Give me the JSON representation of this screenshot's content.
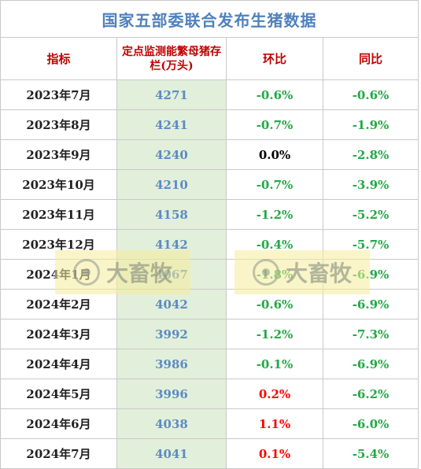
{
  "title": "国家五部委联合发布生猪数据",
  "headers": {
    "indicator": "指标",
    "stock": "定点监测能繁母猪存栏(万头)",
    "mom": "环比",
    "yoy": "同比"
  },
  "rows": [
    {
      "period": "2023年7月",
      "stock": "4271",
      "mom": "-0.6%",
      "yoy": "-0.6%"
    },
    {
      "period": "2023年8月",
      "stock": "4241",
      "mom": "-0.7%",
      "yoy": "-1.9%"
    },
    {
      "period": "2023年9月",
      "stock": "4240",
      "mom": "0.0%",
      "yoy": "-2.8%"
    },
    {
      "period": "2023年10月",
      "stock": "4210",
      "mom": "-0.7%",
      "yoy": "-3.9%"
    },
    {
      "period": "2023年11月",
      "stock": "4158",
      "mom": "-1.2%",
      "yoy": "-5.2%"
    },
    {
      "period": "2023年12月",
      "stock": "4142",
      "mom": "-0.4%",
      "yoy": "-5.7%"
    },
    {
      "period": "2024年1月",
      "stock": "4067",
      "mom": "-1.8%",
      "yoy": "-6.9%"
    },
    {
      "period": "2024年2月",
      "stock": "4042",
      "mom": "-0.6%",
      "yoy": "-6.9%"
    },
    {
      "period": "2024年3月",
      "stock": "3992",
      "mom": "-1.2%",
      "yoy": "-7.3%"
    },
    {
      "period": "2024年4月",
      "stock": "3986",
      "mom": "-0.1%",
      "yoy": "-6.9%"
    },
    {
      "period": "2024年5月",
      "stock": "3996",
      "mom": "0.2%",
      "yoy": "-6.2%"
    },
    {
      "period": "2024年6月",
      "stock": "4038",
      "mom": "1.1%",
      "yoy": "-6.0%"
    },
    {
      "period": "2024年7月",
      "stock": "4041",
      "mom": "0.1%",
      "yoy": "-5.4%"
    }
  ],
  "watermark": {
    "text": "大畜牧",
    "logo_icon": "dxumu-logo-icon"
  },
  "colors": {
    "title": "#4f81bd",
    "header": "#c00000",
    "stock_text": "#5b8bc2",
    "stock_fill": "#e2efda",
    "positive": "#ff0000",
    "negative": "#22a845",
    "zero": "#000000"
  }
}
